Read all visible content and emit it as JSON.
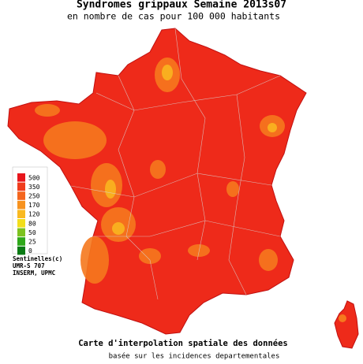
{
  "title": "Syndromes grippaux Semaine 2013s07",
  "subtitle": "en nombre de cas pour 100 000 habitants",
  "legend": {
    "levels": [
      {
        "value": 500,
        "color": "#e8161c"
      },
      {
        "value": 350,
        "color": "#f03c1c"
      },
      {
        "value": 250,
        "color": "#f4661e"
      },
      {
        "value": 170,
        "color": "#f7921e"
      },
      {
        "value": 120,
        "color": "#f9b920"
      },
      {
        "value": 80,
        "color": "#f2de1a"
      },
      {
        "value": 50,
        "color": "#7cc21e"
      },
      {
        "value": 25,
        "color": "#2ea81a"
      },
      {
        "value": 0,
        "color": "#0a7a14"
      }
    ]
  },
  "credits": [
    "Sentinelles(c)",
    "UMR-S 707",
    "INSERM, UPMC"
  ],
  "caption": [
    "Carte d'interpolation spatiale des données",
    "basée sur les incidences departementales"
  ]
}
